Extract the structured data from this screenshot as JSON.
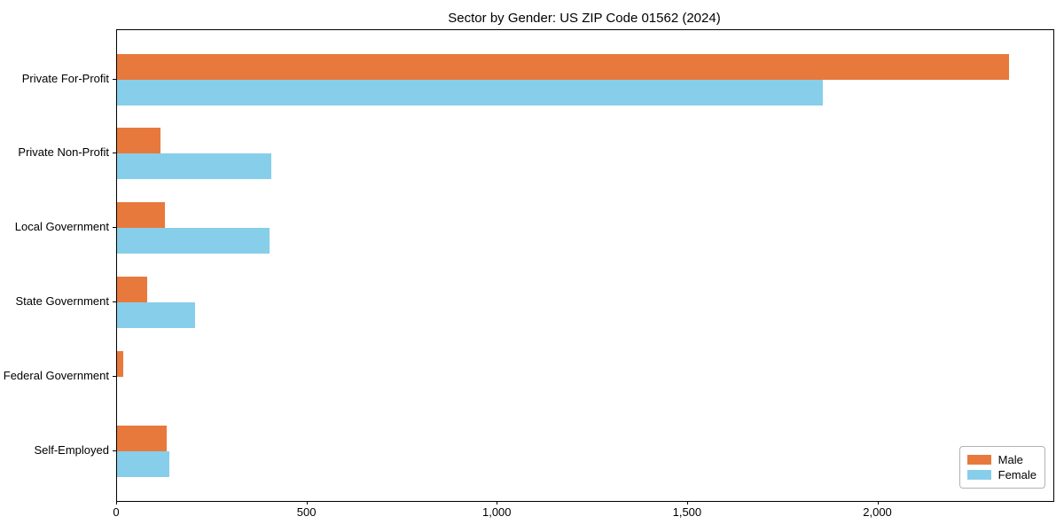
{
  "chart_data": {
    "type": "bar",
    "orientation": "horizontal",
    "title": "Sector by Gender: US ZIP Code 01562 (2024)",
    "categories": [
      "Private For-Profit",
      "Private Non-Profit",
      "Local Government",
      "State Government",
      "Federal Government",
      "Self-Employed"
    ],
    "series": [
      {
        "name": "Male",
        "color": "#e8793c",
        "values": [
          2343,
          114,
          126,
          80,
          17,
          131
        ]
      },
      {
        "name": "Female",
        "color": "#87ceeb",
        "values": [
          1855,
          406,
          401,
          205,
          0,
          138
        ]
      }
    ],
    "xlabel": "",
    "ylabel": "",
    "xlim": [
      0,
      2460
    ],
    "xticks": [
      {
        "value": 0,
        "label": "0"
      },
      {
        "value": 500,
        "label": "500"
      },
      {
        "value": 1000,
        "label": "1,000"
      },
      {
        "value": 1500,
        "label": "1,500"
      },
      {
        "value": 2000,
        "label": "2,000"
      }
    ],
    "grid": false,
    "legend": {
      "position": "lower right"
    }
  }
}
